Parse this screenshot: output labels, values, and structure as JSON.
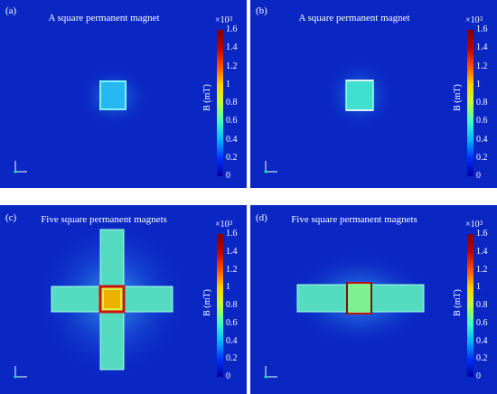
{
  "panels": [
    {
      "id": "a",
      "label": "(a)",
      "title": "A square permanent magnet"
    },
    {
      "id": "b",
      "label": "(b)",
      "title": "A square permanent magnet"
    },
    {
      "id": "c",
      "label": "(c)",
      "title": "Five square permanent magnets"
    },
    {
      "id": "d",
      "label": "(d)",
      "title": "Five square permanent magnets"
    }
  ],
  "colorbar": {
    "multiplier_base": "×10",
    "multiplier_exp": "3",
    "unit_label": "B (mT)",
    "ticks": [
      "1.6",
      "1.4",
      "1.2",
      "1",
      "0.8",
      "0.6",
      "0.4",
      "0.2",
      "0"
    ],
    "range": [
      0,
      1.6
    ],
    "colors": [
      "#0000a0",
      "#0030ff",
      "#00b8ff",
      "#40ffc0",
      "#c0ff40",
      "#ffd000",
      "#ff5000",
      "#c00000",
      "#800000"
    ]
  },
  "axes_icon": {
    "y": "y",
    "x": "x"
  },
  "colors": {
    "background_field": "#0a27c4",
    "near_field": "#1a7ae0",
    "magnet_fill": "#5fe0b0",
    "hot_edge": "#d01010"
  }
}
